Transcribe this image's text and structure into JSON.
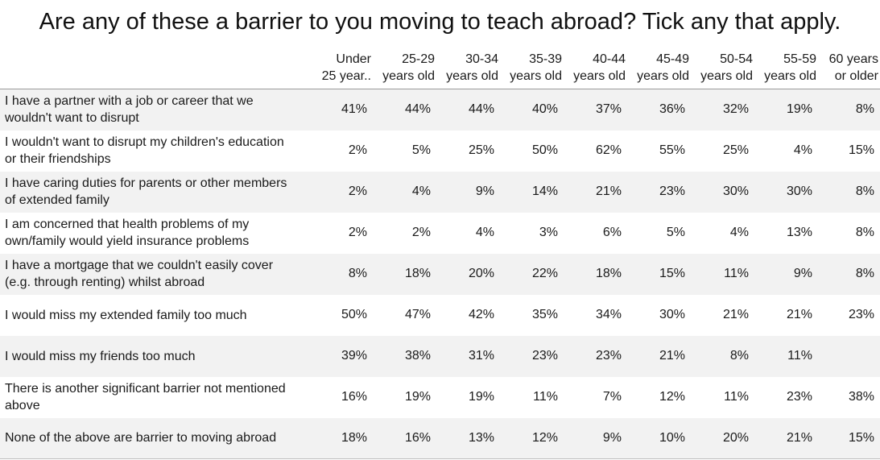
{
  "title": "Are any of these a barrier to you moving to teach abroad? Tick any that apply.",
  "chart_data": {
    "type": "table",
    "title": "Are any of these a barrier to you moving to teach abroad? Tick any that apply.",
    "columns": [
      {
        "line1": "Under",
        "line2": "25 year.."
      },
      {
        "line1": "25-29",
        "line2": "years old"
      },
      {
        "line1": "30-34",
        "line2": "years old"
      },
      {
        "line1": "35-39",
        "line2": "years old"
      },
      {
        "line1": "40-44",
        "line2": "years old"
      },
      {
        "line1": "45-49",
        "line2": "years old"
      },
      {
        "line1": "50-54",
        "line2": "years old"
      },
      {
        "line1": "55-59",
        "line2": "years old"
      },
      {
        "line1": "60 years",
        "line2": "or older"
      }
    ],
    "rows": [
      {
        "label": "I have a partner with a job or career that we wouldn't want to disrupt",
        "values": [
          "41%",
          "44%",
          "44%",
          "40%",
          "37%",
          "36%",
          "32%",
          "19%",
          "8%"
        ]
      },
      {
        "label": "I wouldn't want to disrupt my children's education or their friendships",
        "values": [
          "2%",
          "5%",
          "25%",
          "50%",
          "62%",
          "55%",
          "25%",
          "4%",
          "15%"
        ]
      },
      {
        "label": "I have caring duties for parents or other members of extended family",
        "values": [
          "2%",
          "4%",
          "9%",
          "14%",
          "21%",
          "23%",
          "30%",
          "30%",
          "8%"
        ]
      },
      {
        "label": "I am concerned that health problems of my own/family would yield insurance problems",
        "values": [
          "2%",
          "2%",
          "4%",
          "3%",
          "6%",
          "5%",
          "4%",
          "13%",
          "8%"
        ]
      },
      {
        "label": "I have a mortgage that we couldn't easily cover (e.g. through renting) whilst abroad",
        "values": [
          "8%",
          "18%",
          "20%",
          "22%",
          "18%",
          "15%",
          "11%",
          "9%",
          "8%"
        ]
      },
      {
        "label": "I would miss my extended family too much",
        "values": [
          "50%",
          "47%",
          "42%",
          "35%",
          "34%",
          "30%",
          "21%",
          "21%",
          "23%"
        ]
      },
      {
        "label": "I would miss my friends too much",
        "values": [
          "39%",
          "38%",
          "31%",
          "23%",
          "23%",
          "21%",
          "8%",
          "11%",
          ""
        ]
      },
      {
        "label": "There is another significant barrier not mentioned above",
        "values": [
          "16%",
          "19%",
          "19%",
          "11%",
          "7%",
          "12%",
          "11%",
          "23%",
          "38%"
        ]
      },
      {
        "label": "None of the above are barrier to moving abroad",
        "values": [
          "18%",
          "16%",
          "13%",
          "12%",
          "9%",
          "10%",
          "20%",
          "21%",
          "15%"
        ]
      }
    ],
    "row_shading": "alternating, starting shaded",
    "shade_color": "#f2f2f2"
  }
}
